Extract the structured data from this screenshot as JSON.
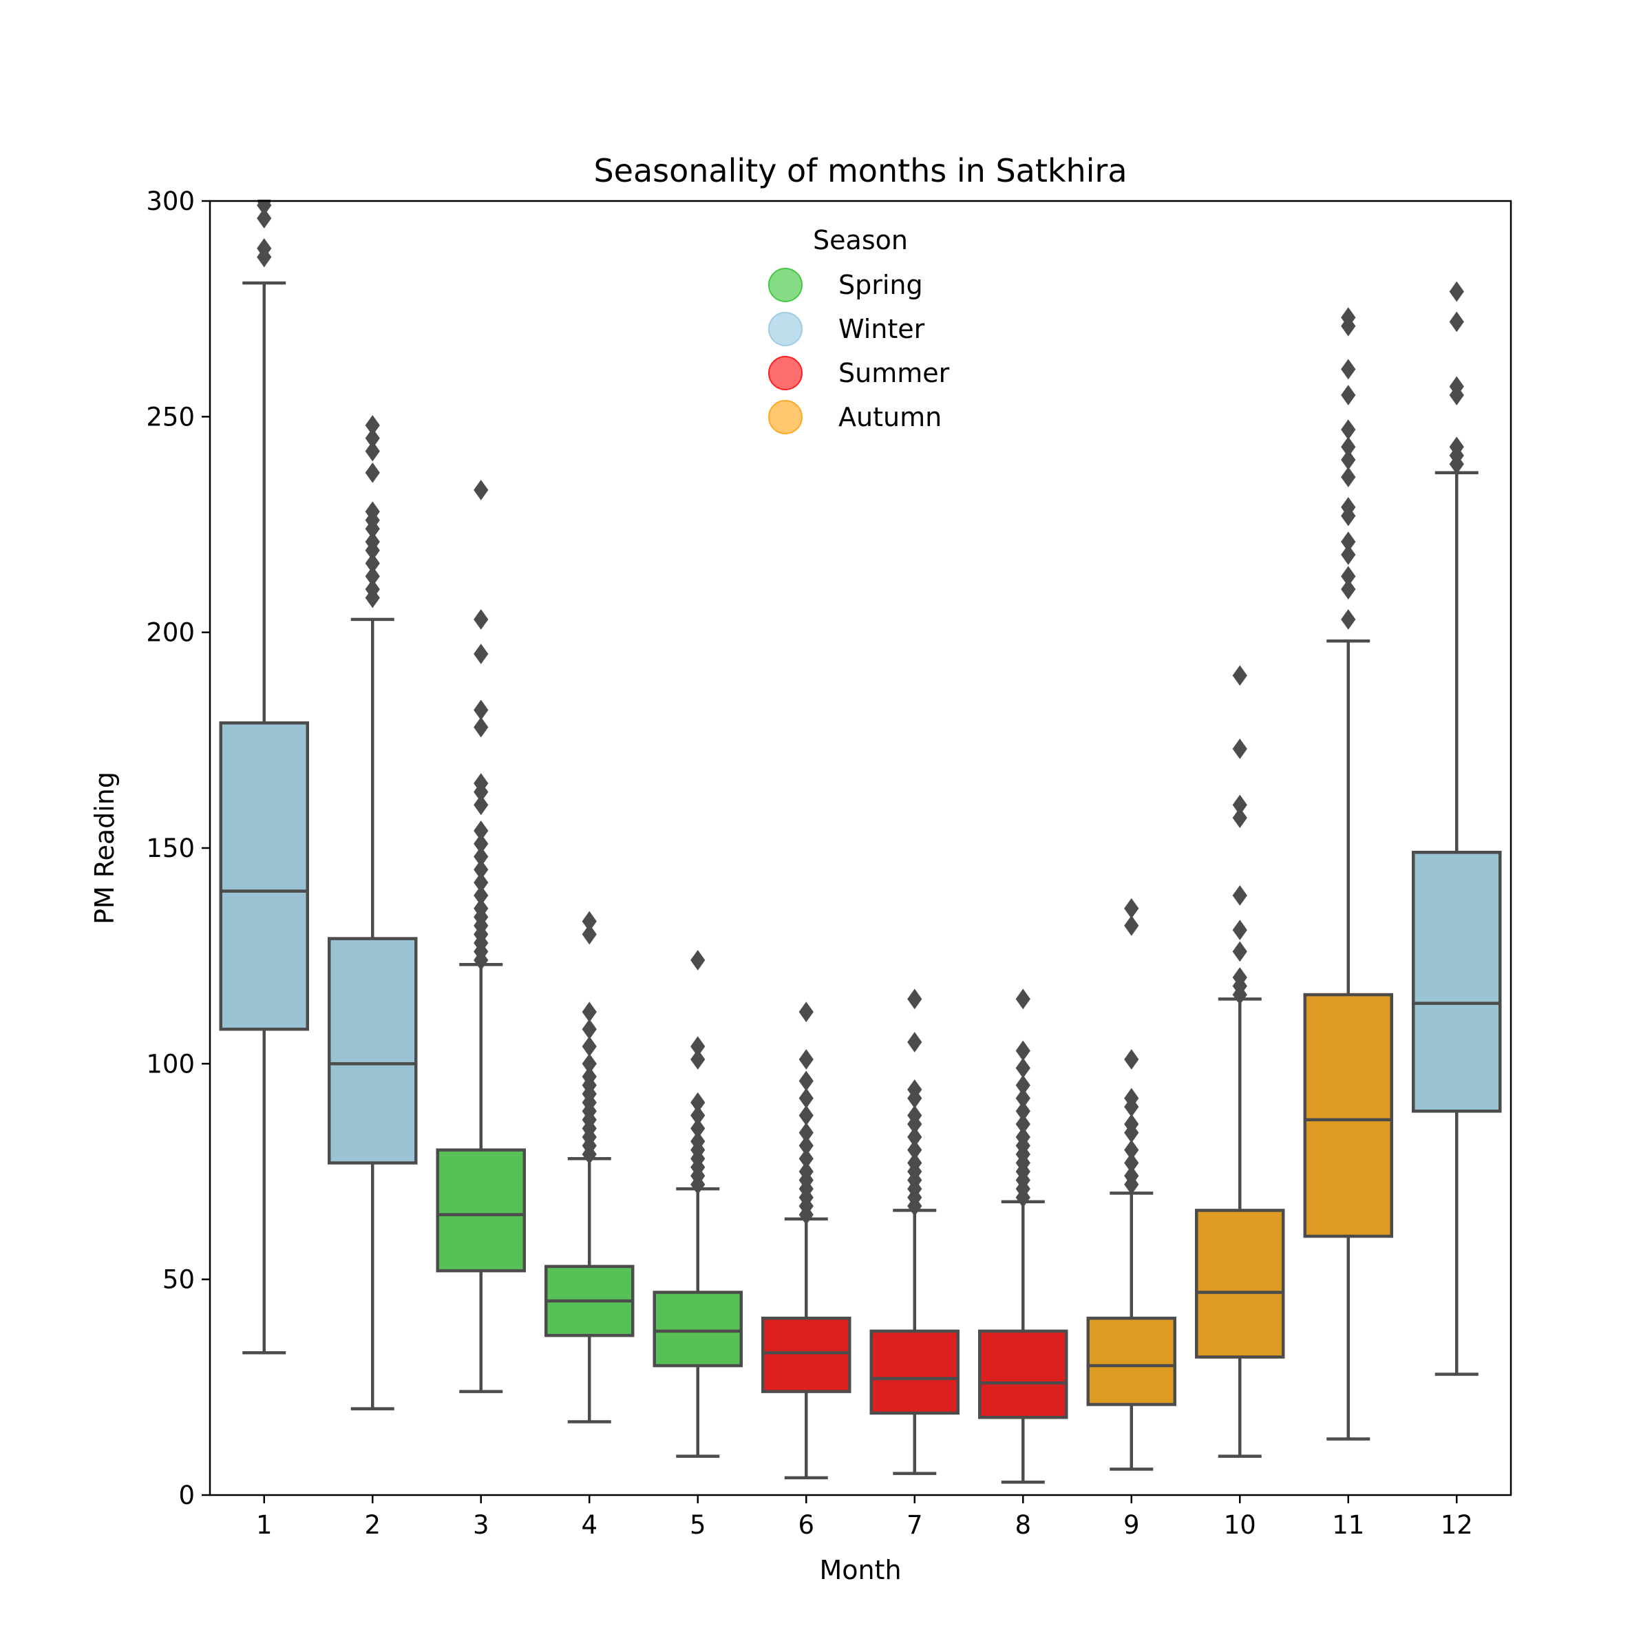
{
  "chart_data": {
    "type": "box",
    "title": "Seasonality of months in Satkhira",
    "xlabel": "Month",
    "ylabel": "PM Reading",
    "ylim": [
      0,
      300
    ],
    "yticks": [
      0,
      50,
      100,
      150,
      200,
      250,
      300
    ],
    "categories": [
      "1",
      "2",
      "3",
      "4",
      "5",
      "6",
      "7",
      "8",
      "9",
      "10",
      "11",
      "12"
    ],
    "grid": false,
    "legend": {
      "title": "Season",
      "placement": "top-center",
      "entries": [
        {
          "label": "Spring",
          "color": "#44c944"
        },
        {
          "label": "Winter",
          "color": "#9ccde3"
        },
        {
          "label": "Summer",
          "color": "#ff2020"
        },
        {
          "label": "Autumn",
          "color": "#ffaa22"
        }
      ]
    },
    "season_colors": {
      "Winter": "#9ac3d4",
      "Spring": "#57c157",
      "Summer": "#dc1f1f",
      "Autumn": "#de9b22"
    },
    "edge_color": "#4c4c4c",
    "boxes": [
      {
        "month": "1",
        "season": "Winter",
        "whisker_low": 33,
        "q1": 108,
        "median": 140,
        "q3": 179,
        "whisker_high": 281,
        "outliers": [
          287,
          289,
          296,
          299,
          300
        ]
      },
      {
        "month": "2",
        "season": "Winter",
        "whisker_low": 20,
        "q1": 77,
        "median": 100,
        "q3": 129,
        "whisker_high": 203,
        "outliers": [
          208,
          210,
          213,
          216,
          219,
          221,
          224,
          226,
          228,
          237,
          242,
          245,
          248
        ]
      },
      {
        "month": "3",
        "season": "Spring",
        "whisker_low": 24,
        "q1": 52,
        "median": 65,
        "q3": 80,
        "whisker_high": 123,
        "outliers": [
          124,
          126,
          128,
          130,
          132,
          134,
          136,
          139,
          142,
          145,
          148,
          151,
          154,
          160,
          163,
          165,
          178,
          182,
          195,
          203,
          233
        ]
      },
      {
        "month": "4",
        "season": "Spring",
        "whisker_low": 17,
        "q1": 37,
        "median": 45,
        "q3": 53,
        "whisker_high": 78,
        "outliers": [
          79,
          81,
          83,
          85,
          87,
          89,
          91,
          93,
          95,
          97,
          100,
          104,
          108,
          112,
          130,
          133
        ]
      },
      {
        "month": "5",
        "season": "Spring",
        "whisker_low": 9,
        "q1": 30,
        "median": 38,
        "q3": 47,
        "whisker_high": 71,
        "outliers": [
          72,
          74,
          76,
          78,
          80,
          82,
          85,
          88,
          91,
          101,
          104,
          124
        ]
      },
      {
        "month": "6",
        "season": "Summer",
        "whisker_low": 4,
        "q1": 24,
        "median": 33,
        "q3": 41,
        "whisker_high": 64,
        "outliers": [
          65,
          67,
          69,
          71,
          73,
          75,
          78,
          81,
          84,
          88,
          92,
          96,
          101,
          112
        ]
      },
      {
        "month": "7",
        "season": "Summer",
        "whisker_low": 5,
        "q1": 19,
        "median": 27,
        "q3": 38,
        "whisker_high": 66,
        "outliers": [
          67,
          69,
          71,
          73,
          75,
          77,
          80,
          83,
          86,
          88,
          92,
          94,
          105,
          115
        ]
      },
      {
        "month": "8",
        "season": "Summer",
        "whisker_low": 3,
        "q1": 18,
        "median": 26,
        "q3": 38,
        "whisker_high": 68,
        "outliers": [
          69,
          71,
          73,
          75,
          77,
          79,
          81,
          83,
          86,
          89,
          92,
          95,
          99,
          103,
          115
        ]
      },
      {
        "month": "9",
        "season": "Autumn",
        "whisker_low": 6,
        "q1": 21,
        "median": 30,
        "q3": 41,
        "whisker_high": 70,
        "outliers": [
          72,
          74,
          77,
          80,
          84,
          86,
          90,
          92,
          101,
          132,
          136
        ]
      },
      {
        "month": "10",
        "season": "Autumn",
        "whisker_low": 9,
        "q1": 32,
        "median": 47,
        "q3": 66,
        "whisker_high": 115,
        "outliers": [
          116,
          118,
          120,
          126,
          131,
          139,
          157,
          160,
          173,
          190
        ]
      },
      {
        "month": "11",
        "season": "Autumn",
        "whisker_low": 13,
        "q1": 60,
        "median": 87,
        "q3": 116,
        "whisker_high": 198,
        "outliers": [
          203,
          210,
          213,
          218,
          221,
          227,
          229,
          236,
          240,
          243,
          247,
          255,
          261,
          271,
          273
        ]
      },
      {
        "month": "12",
        "season": "Winter",
        "whisker_low": 28,
        "q1": 89,
        "median": 114,
        "q3": 149,
        "whisker_high": 237,
        "outliers": [
          239,
          241,
          243,
          255,
          257,
          272,
          279
        ]
      }
    ]
  }
}
